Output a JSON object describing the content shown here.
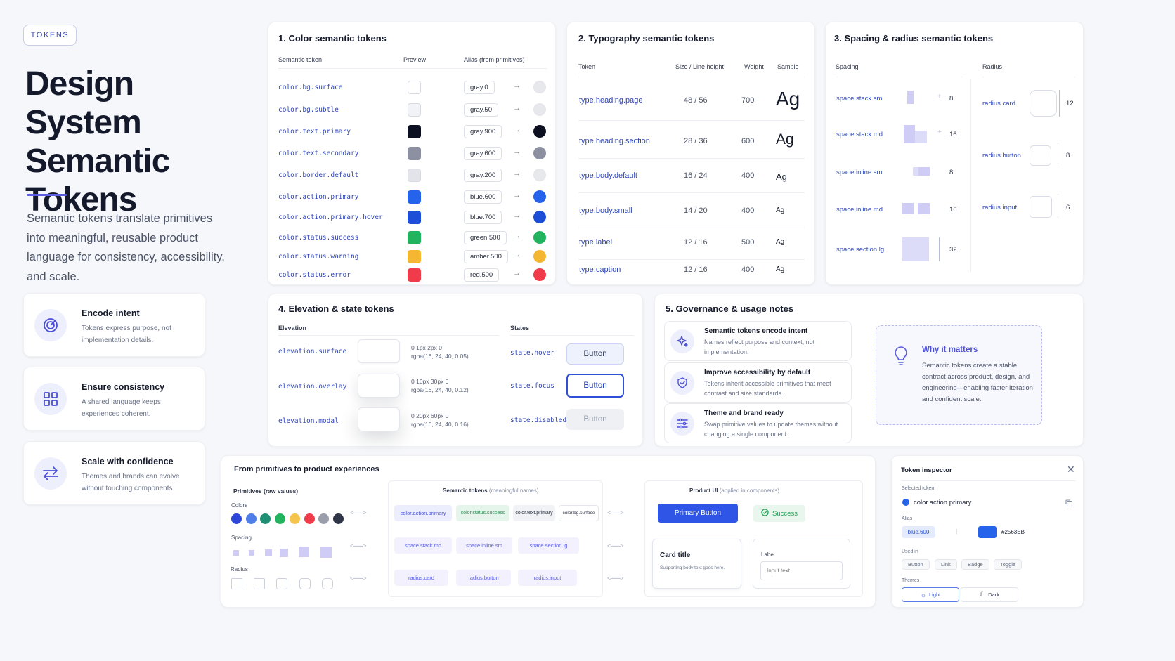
{
  "tag": "TOKENS",
  "hero": {
    "title": "Design System Semantic Tokens",
    "description": "Semantic tokens translate primitives into meaningful, reusable product language for consistency, accessibility, and scale."
  },
  "features": [
    {
      "title": "Encode intent",
      "desc": "Tokens express purpose, not implementation details.",
      "icon": "target-icon"
    },
    {
      "title": "Ensure consistency",
      "desc": "A shared language keeps experiences coherent.",
      "icon": "grid-icon"
    },
    {
      "title": "Scale with confidence",
      "desc": "Themes and brands can evolve without touching components.",
      "icon": "swap-arrows-icon"
    }
  ],
  "color": {
    "title": "1. Color semantic tokens",
    "headers": {
      "token": "Semantic token",
      "preview": "Preview",
      "alias": "Alias (from primitives)"
    },
    "arrow": "→",
    "rows": [
      {
        "token": "color.bg.surface",
        "alias": "gray.0",
        "color": "#ffffff"
      },
      {
        "token": "color.bg.subtle",
        "alias": "gray.50",
        "color": "#f2f3f6"
      },
      {
        "token": "color.text.primary",
        "alias": "gray.900",
        "color": "#0c1020"
      },
      {
        "token": "color.text.secondary",
        "alias": "gray.600",
        "color": "#8c90a0"
      },
      {
        "token": "color.border.default",
        "alias": "gray.200",
        "color": "#e2e4ea"
      },
      {
        "token": "color.action.primary",
        "alias": "blue.600",
        "color": "#2563EB"
      },
      {
        "token": "color.action.primary.hover",
        "alias": "blue.700",
        "color": "#1d4ed8"
      },
      {
        "token": "color.status.success",
        "alias": "green.500",
        "color": "#22b35e"
      },
      {
        "token": "color.status.warning",
        "alias": "amber.500",
        "color": "#f5b731"
      },
      {
        "token": "color.status.error",
        "alias": "red.500",
        "color": "#ef3b4a"
      }
    ]
  },
  "typography": {
    "title": "2. Typography semantic tokens",
    "headers": {
      "token": "Token",
      "size": "Size / Line height",
      "weight": "Weight",
      "sample": "Sample"
    },
    "rows": [
      {
        "token": "type.heading.page",
        "size": "48 / 56",
        "weight": "700",
        "sample": "Ag"
      },
      {
        "token": "type.heading.section",
        "size": "28 / 36",
        "weight": "600",
        "sample": "Ag"
      },
      {
        "token": "type.body.default",
        "size": "16 / 24",
        "weight": "400",
        "sample": "Ag"
      },
      {
        "token": "type.body.small",
        "size": "14 / 20",
        "weight": "400",
        "sample": "Ag"
      },
      {
        "token": "type.label",
        "size": "12 / 16",
        "weight": "500",
        "sample": "Ag"
      },
      {
        "token": "type.caption",
        "size": "12 / 16",
        "weight": "400",
        "sample": "Ag"
      }
    ]
  },
  "spacing": {
    "title": "3. Spacing & radius semantic tokens",
    "spacing_header": "Spacing",
    "radius_header": "Radius",
    "spacing_rows": [
      {
        "token": "space.stack.sm",
        "value": "8"
      },
      {
        "token": "space.stack.md",
        "value": "16"
      },
      {
        "token": "space.inline.sm",
        "value": "8"
      },
      {
        "token": "space.inline.md",
        "value": "16"
      },
      {
        "token": "space.section.lg",
        "value": "32"
      }
    ],
    "radius_rows": [
      {
        "token": "radius.card",
        "value": "12"
      },
      {
        "token": "radius.button",
        "value": "8"
      },
      {
        "token": "radius.input",
        "value": "6"
      }
    ]
  },
  "elevation": {
    "title": "4. Elevation & state tokens",
    "elevation_header": "Elevation",
    "states_header": "States",
    "rows": [
      {
        "token": "elevation.surface",
        "line1": "0 1px 2px 0",
        "line2": "rgba(16, 24, 40, 0.05)"
      },
      {
        "token": "elevation.overlay",
        "line1": "0 10px 30px 0",
        "line2": "rgba(16, 24, 40, 0.12)"
      },
      {
        "token": "elevation.modal",
        "line1": "0 20px 60px 0",
        "line2": "rgba(16, 24, 40, 0.16)"
      }
    ],
    "states": [
      {
        "token": "state.hover",
        "label": "Button"
      },
      {
        "token": "state.focus",
        "label": "Button"
      },
      {
        "token": "state.disabled",
        "label": "Button"
      }
    ]
  },
  "governance": {
    "title": "5. Governance & usage notes",
    "rows": [
      {
        "title": "Semantic tokens encode intent",
        "desc": "Names reflect purpose and context, not implementation.",
        "icon": "sparkle-icon"
      },
      {
        "title": "Improve accessibility by default",
        "desc": "Tokens inherit accessible primitives that meet contrast and size standards.",
        "icon": "shield-icon"
      },
      {
        "title": "Theme and brand ready",
        "desc": "Swap primitive values to update themes without changing a single component.",
        "icon": "sliders-icon"
      }
    ],
    "why": {
      "title": "Why it matters",
      "desc": "Semantic tokens create a stable contract across product, design, and engineering—enabling faster iteration and confident scale.",
      "icon": "lightbulb-icon"
    }
  },
  "flow": {
    "title": "From primitives to product experiences",
    "primitives_header": "Primitives (raw values)",
    "colors_label": "Colors",
    "spacing_label": "Spacing",
    "radius_label": "Radius",
    "primitive_colors": [
      "#2f47d9",
      "#4f7ee8",
      "#1f8f74",
      "#22b35e",
      "#f5c44d",
      "#ef3b4a",
      "#9a9eab",
      "#2f3546"
    ],
    "semantic_header": "Semantic tokens",
    "semantic_sub": "(meaningful names)",
    "semantic_chips": [
      [
        "color.action.primary",
        "color.status.success",
        "color.text.primary",
        "color.bg.surface"
      ],
      [
        "space.stack.md",
        "space.inline.sm",
        "space.section.lg"
      ],
      [
        "radius.card",
        "radius.button",
        "radius.input"
      ]
    ],
    "product_header": "Product UI",
    "product_sub": "(applied in components)",
    "primary_button": "Primary Button",
    "success": "Success",
    "card_title": "Card title",
    "card_body": "Supporting body text goes here.",
    "input_label": "Label",
    "input_placeholder": "Input text"
  },
  "inspector": {
    "title": "Token inspector",
    "selected_label": "Selected token",
    "selected_token": "color.action.primary",
    "alias_label": "Alias",
    "alias": "blue.600",
    "hex": "#2563EB",
    "used_in_label": "Used in",
    "used_in": [
      "Button",
      "Link",
      "Badge",
      "Toggle"
    ],
    "themes_label": "Themes",
    "theme_light": "Light",
    "theme_dark": "Dark"
  }
}
